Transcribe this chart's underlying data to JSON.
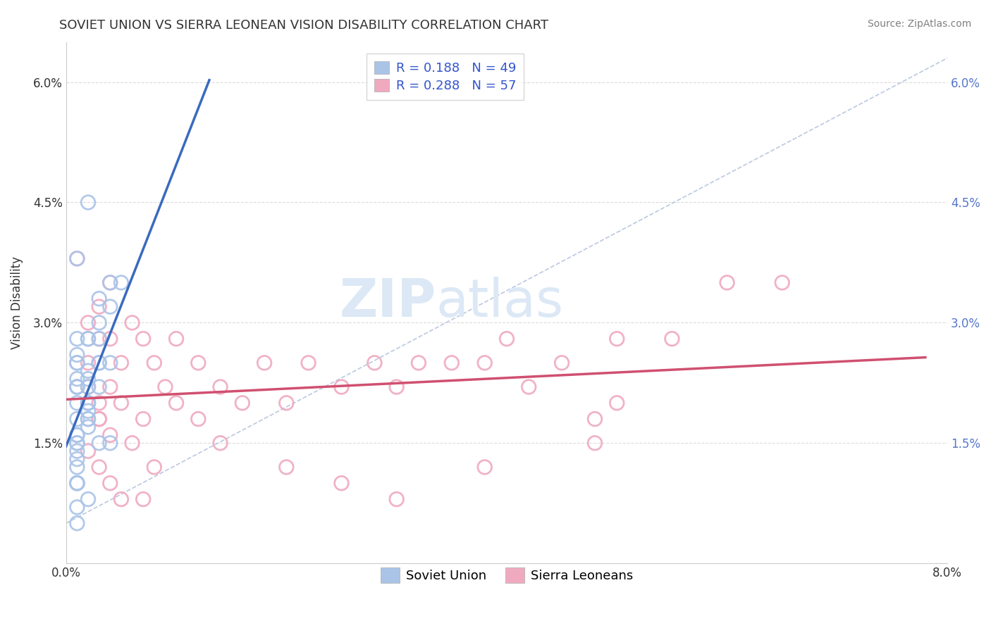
{
  "title": "SOVIET UNION VS SIERRA LEONEAN VISION DISABILITY CORRELATION CHART",
  "source": "Source: ZipAtlas.com",
  "ylabel": "Vision Disability",
  "xlim": [
    0.0,
    0.08
  ],
  "ylim": [
    0.0,
    0.065
  ],
  "x_ticks": [
    0.0,
    0.02,
    0.04,
    0.06,
    0.08
  ],
  "x_tick_labels": [
    "0.0%",
    "",
    "",
    "",
    "8.0%"
  ],
  "y_ticks": [
    0.0,
    0.015,
    0.03,
    0.045,
    0.06
  ],
  "y_tick_labels": [
    "",
    "1.5%",
    "3.0%",
    "4.5%",
    "6.0%"
  ],
  "soviet_R": 0.188,
  "soviet_N": 49,
  "sierra_R": 0.288,
  "sierra_N": 57,
  "soviet_color": "#aac4e8",
  "sierra_color": "#f0aac0",
  "soviet_line_color": "#3a6abf",
  "sierra_line_color": "#d05070",
  "trend_line_color": "#aabbd8",
  "background_color": "#ffffff",
  "grid_color": "#cccccc",
  "right_tick_color": "#5577cc",
  "legend_text_color": "#3355cc",
  "watermark_color": "#dce8f5",
  "soviet_points_x": [
    0.001,
    0.002,
    0.001,
    0.002,
    0.001,
    0.001,
    0.002,
    0.003,
    0.001,
    0.002,
    0.003,
    0.001,
    0.002,
    0.001,
    0.003,
    0.001,
    0.002,
    0.001,
    0.002,
    0.001,
    0.004,
    0.005,
    0.001,
    0.002,
    0.003,
    0.001,
    0.002,
    0.003,
    0.001,
    0.002,
    0.001,
    0.003,
    0.004,
    0.001,
    0.002,
    0.001,
    0.001,
    0.002,
    0.001,
    0.001,
    0.001,
    0.003,
    0.002,
    0.001,
    0.004,
    0.001,
    0.002,
    0.004,
    0.001
  ],
  "soviet_points_y": [
    0.026,
    0.045,
    0.038,
    0.028,
    0.025,
    0.022,
    0.028,
    0.03,
    0.022,
    0.024,
    0.033,
    0.02,
    0.019,
    0.023,
    0.028,
    0.016,
    0.018,
    0.015,
    0.017,
    0.014,
    0.032,
    0.035,
    0.022,
    0.02,
    0.025,
    0.01,
    0.008,
    0.015,
    0.025,
    0.022,
    0.028,
    0.025,
    0.035,
    0.012,
    0.018,
    0.015,
    0.007,
    0.02,
    0.016,
    0.01,
    0.013,
    0.022,
    0.023,
    0.018,
    0.025,
    0.01,
    0.02,
    0.015,
    0.005
  ],
  "sierra_points_x": [
    0.001,
    0.002,
    0.003,
    0.002,
    0.003,
    0.002,
    0.004,
    0.003,
    0.004,
    0.005,
    0.006,
    0.007,
    0.008,
    0.009,
    0.01,
    0.012,
    0.014,
    0.016,
    0.018,
    0.02,
    0.022,
    0.025,
    0.028,
    0.03,
    0.032,
    0.035,
    0.038,
    0.04,
    0.042,
    0.045,
    0.048,
    0.05,
    0.055,
    0.06,
    0.065,
    0.003,
    0.004,
    0.005,
    0.006,
    0.007,
    0.008,
    0.01,
    0.012,
    0.014,
    0.002,
    0.003,
    0.004,
    0.005,
    0.007,
    0.02,
    0.025,
    0.03,
    0.003,
    0.004,
    0.048,
    0.05,
    0.038
  ],
  "sierra_points_y": [
    0.038,
    0.03,
    0.032,
    0.025,
    0.028,
    0.022,
    0.035,
    0.02,
    0.028,
    0.025,
    0.03,
    0.028,
    0.025,
    0.022,
    0.028,
    0.025,
    0.022,
    0.02,
    0.025,
    0.02,
    0.025,
    0.022,
    0.025,
    0.022,
    0.025,
    0.025,
    0.025,
    0.028,
    0.022,
    0.025,
    0.015,
    0.028,
    0.028,
    0.035,
    0.035,
    0.018,
    0.022,
    0.02,
    0.015,
    0.018,
    0.012,
    0.02,
    0.018,
    0.015,
    0.014,
    0.012,
    0.01,
    0.008,
    0.008,
    0.012,
    0.01,
    0.008,
    0.018,
    0.016,
    0.018,
    0.02,
    0.012
  ]
}
